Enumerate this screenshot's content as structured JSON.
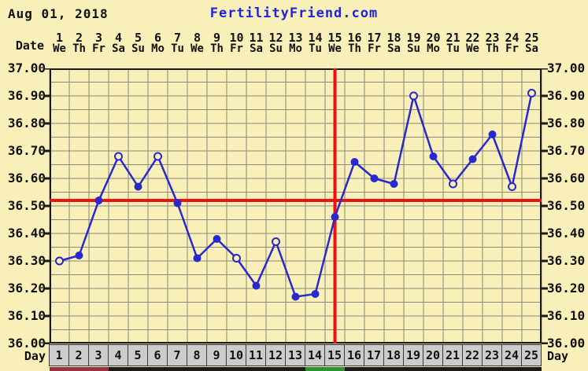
{
  "header": {
    "date": "Aug 01, 2018",
    "site": "FertilityFriend.com"
  },
  "axis": {
    "date_label": "Date",
    "day_label": "Day",
    "y_tick_labels": [
      "37.00",
      "36.90",
      "36.80",
      "36.70",
      "36.60",
      "36.50",
      "36.40",
      "36.30",
      "36.20",
      "36.10",
      "36.00"
    ]
  },
  "chart_data": {
    "type": "line",
    "x": [
      1,
      2,
      3,
      4,
      5,
      6,
      7,
      8,
      9,
      10,
      11,
      12,
      13,
      14,
      15,
      16,
      17,
      18,
      19,
      20,
      21,
      22,
      23,
      24,
      25
    ],
    "weekdays": [
      "We",
      "Th",
      "Fr",
      "Sa",
      "Su",
      "Mo",
      "Tu",
      "We",
      "Th",
      "Fr",
      "Sa",
      "Su",
      "Mo",
      "Tu",
      "We",
      "Th",
      "Fr",
      "Sa",
      "Su",
      "Mo",
      "Tu",
      "We",
      "Th",
      "Fr",
      "Sa"
    ],
    "series": [
      {
        "name": "basal-body-temperature",
        "values": [
          36.3,
          36.32,
          36.52,
          36.68,
          36.57,
          36.68,
          36.51,
          36.31,
          36.38,
          36.31,
          36.21,
          36.37,
          36.17,
          36.18,
          36.46,
          36.66,
          36.6,
          36.58,
          36.9,
          36.68,
          36.58,
          36.67,
          36.76,
          36.57,
          36.91
        ]
      }
    ],
    "open_marker_days": [
      1,
      4,
      6,
      10,
      12,
      19,
      21,
      24,
      25
    ],
    "coverline_value": 36.52,
    "vertical_line_day": 15,
    "ylim": [
      36.0,
      37.0
    ],
    "y_major_step": 0.1,
    "y_minor_step": 0.05,
    "x_label": "Day",
    "grid": true,
    "legend": "none"
  },
  "cycle_strip": {
    "segments": [
      {
        "from": 1,
        "to": 3,
        "color": "#993340",
        "name": "period-days"
      },
      {
        "from": 4,
        "to": 13,
        "color": "#1C1C1C",
        "name": "pre-ovulation-days"
      },
      {
        "from": 14,
        "to": 15,
        "color": "#2F9135",
        "name": "fertile-days"
      },
      {
        "from": 16,
        "to": 25,
        "color": "#1C1C1C",
        "name": "post-ovulation-days"
      }
    ]
  },
  "colors": {
    "background": "#F8EFB9",
    "grid": "#8A8878",
    "plot_border": "#1A1A1A",
    "temperature_line": "#2828CF",
    "red_line": "#EE1111",
    "site_link": "#2222DD",
    "day_cell_bg": "#CCCCCC",
    "day_cell_border": "#3A3A3A",
    "text": "#111111"
  }
}
